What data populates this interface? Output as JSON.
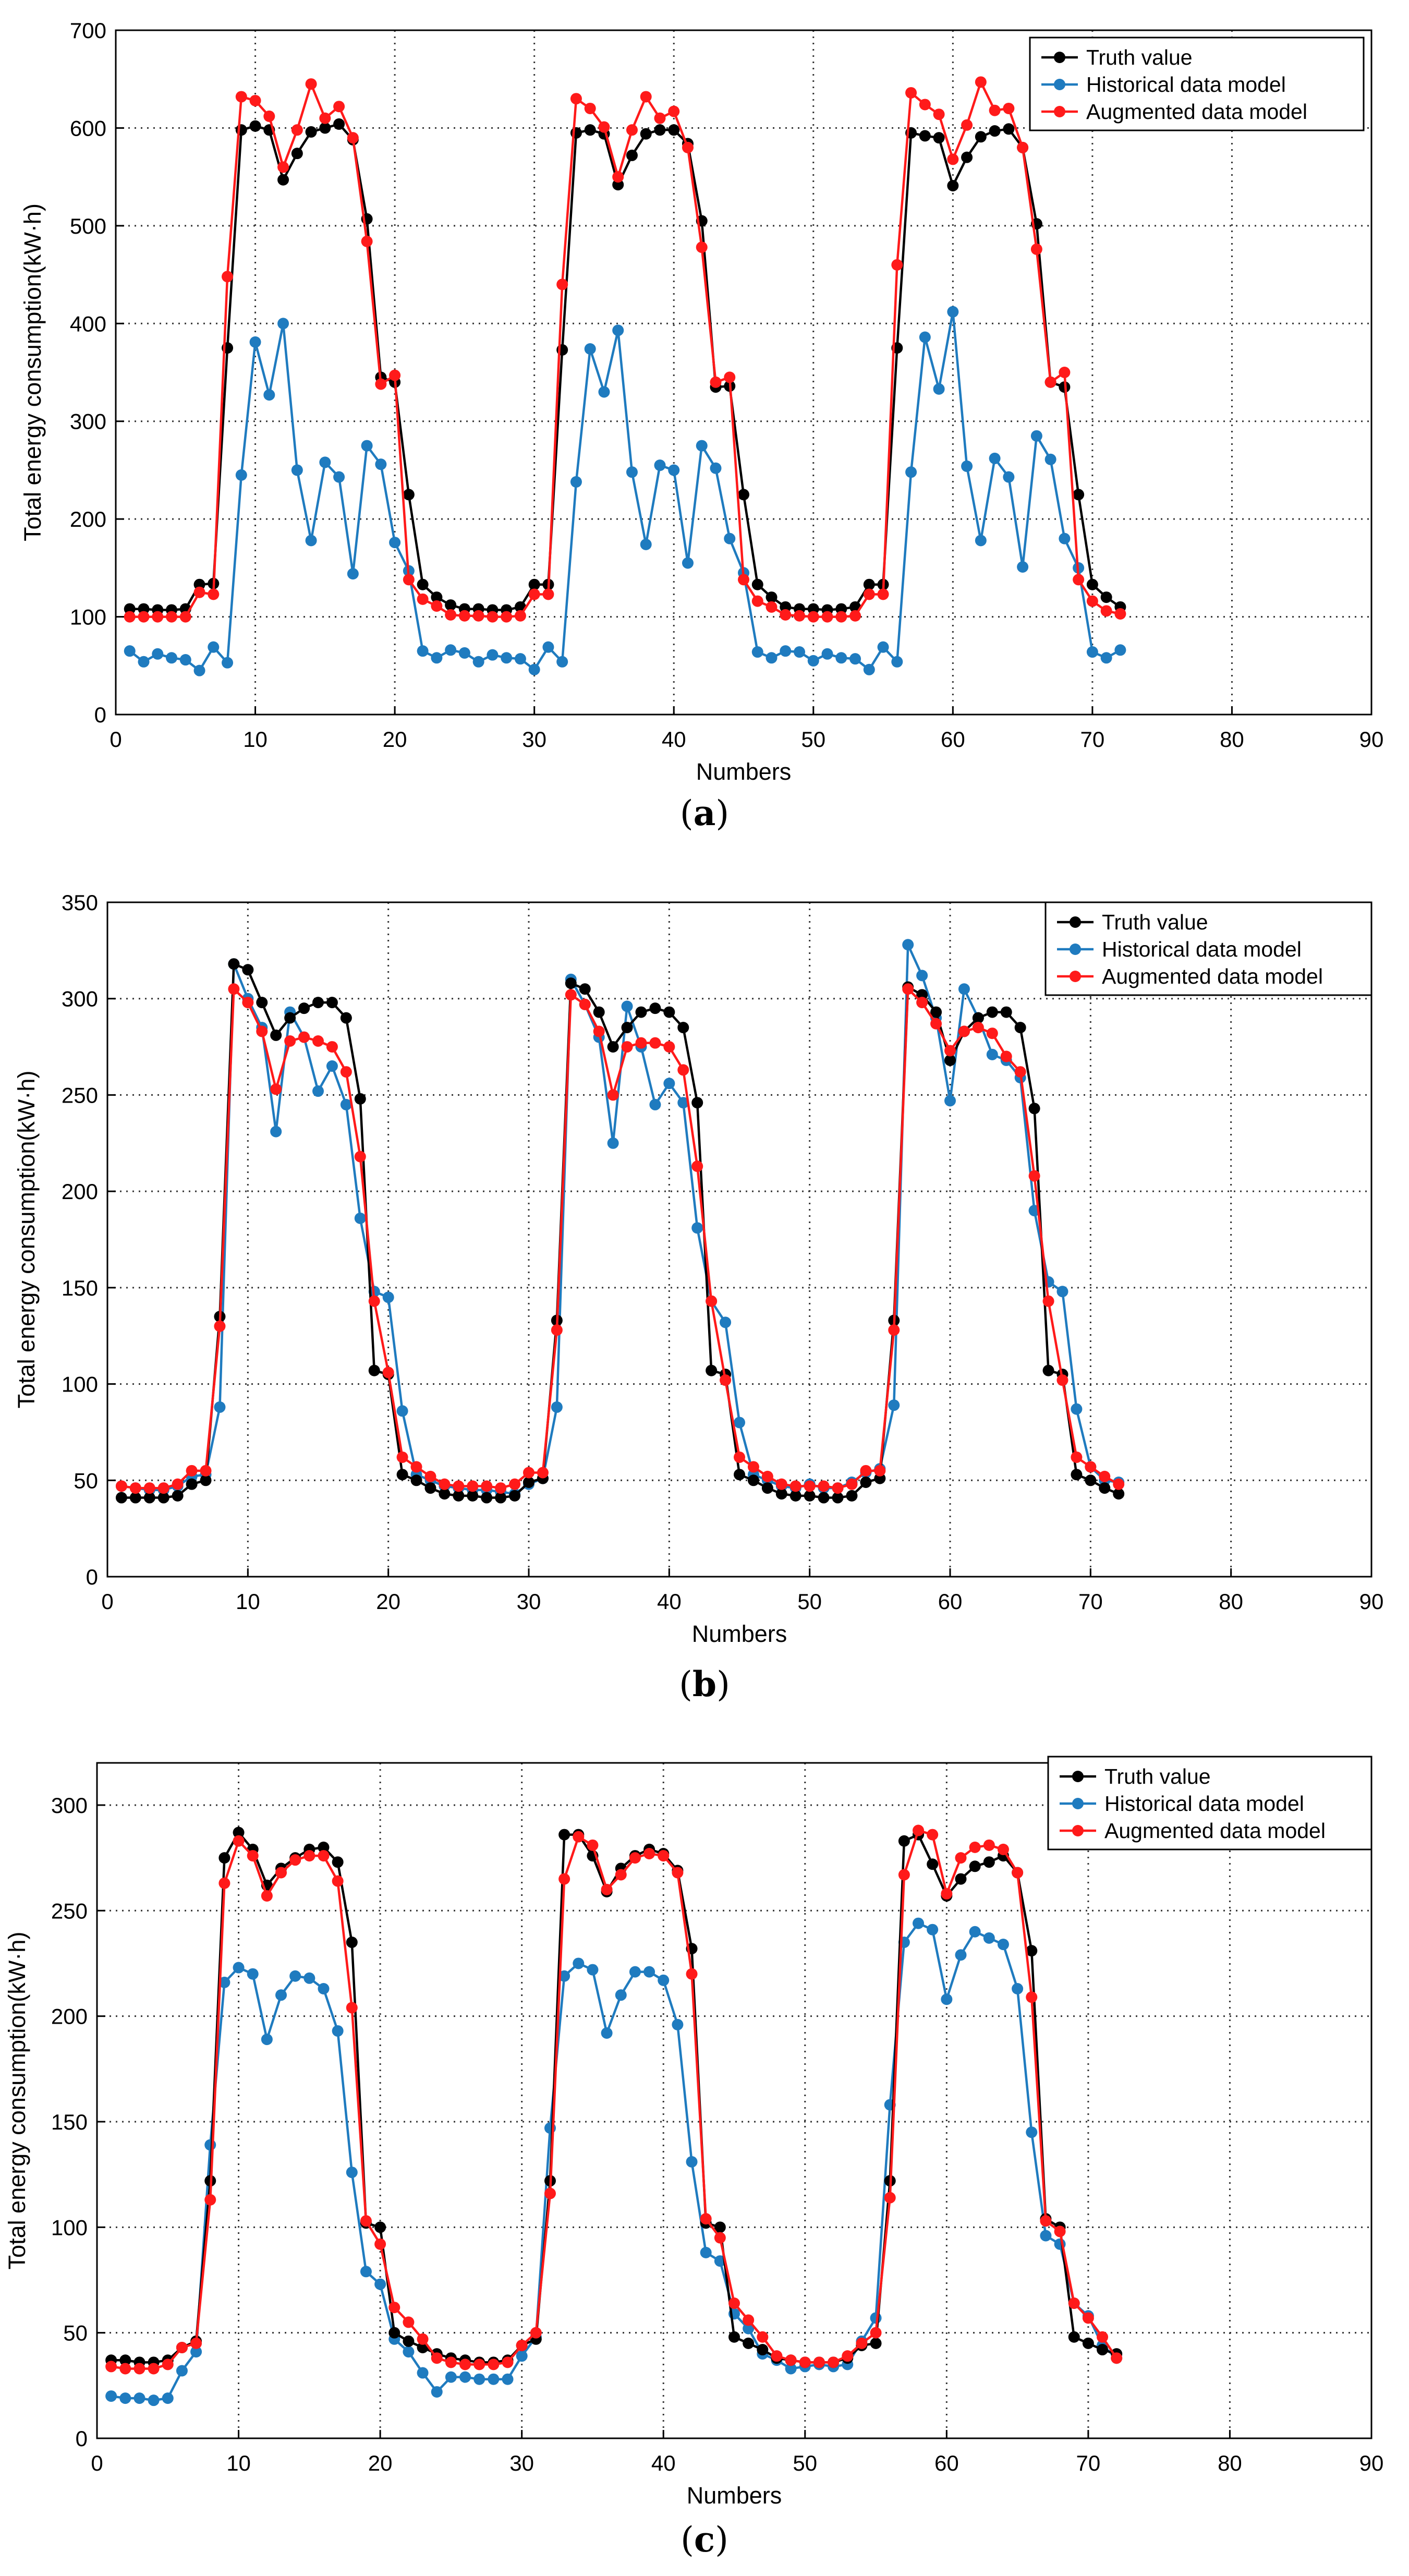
{
  "colors": {
    "truth": "#000000",
    "historical": "#1f7bbf",
    "augmented": "#ff1a1a"
  },
  "chart_data": [
    {
      "type": "line",
      "panel_label": "a",
      "xlabel": "Numbers",
      "ylabel": "Total energy consumption(kW·h)",
      "xlim": [
        0,
        90
      ],
      "ylim": [
        0,
        700
      ],
      "xticks": [
        0,
        10,
        20,
        30,
        40,
        50,
        60,
        70,
        80,
        90
      ],
      "yticks": [
        0,
        100,
        200,
        300,
        400,
        500,
        600,
        700
      ],
      "grid": true,
      "legend_position": "top-right",
      "x": [
        1,
        2,
        3,
        4,
        5,
        6,
        7,
        8,
        9,
        10,
        11,
        12,
        13,
        14,
        15,
        16,
        17,
        18,
        19,
        20,
        21,
        22,
        23,
        24,
        25,
        26,
        27,
        28,
        29,
        30,
        31,
        32,
        33,
        34,
        35,
        36,
        37,
        38,
        39,
        40,
        41,
        42,
        43,
        44,
        45,
        46,
        47,
        48,
        49,
        50,
        51,
        52,
        53,
        54,
        55,
        56,
        57,
        58,
        59,
        60,
        61,
        62,
        63,
        64,
        65,
        66,
        67,
        68,
        69,
        70,
        71,
        72
      ],
      "series": [
        {
          "name": "Truth value",
          "color": "#000000",
          "values": [
            108,
            108,
            107,
            107,
            108,
            133,
            134,
            375,
            598,
            602,
            598,
            547,
            574,
            596,
            600,
            604,
            588,
            507,
            345,
            340,
            225,
            133,
            120,
            112,
            108,
            108,
            107,
            107,
            110,
            133,
            133,
            373,
            595,
            598,
            594,
            542,
            572,
            594,
            598,
            598,
            584,
            505,
            335,
            336,
            225,
            133,
            120,
            110,
            108,
            108,
            107,
            108,
            110,
            133,
            133,
            375,
            595,
            592,
            590,
            541,
            570,
            591,
            597,
            599,
            580,
            502,
            340,
            335,
            225,
            133,
            120,
            110
          ]
        },
        {
          "name": "Historical data model",
          "color": "#1f7bbf",
          "values": [
            65,
            54,
            62,
            58,
            56,
            45,
            69,
            53,
            245,
            381,
            327,
            400,
            250,
            178,
            258,
            243,
            144,
            275,
            256,
            176,
            147,
            65,
            58,
            66,
            63,
            54,
            61,
            58,
            57,
            46,
            69,
            54,
            238,
            374,
            330,
            393,
            248,
            174,
            255,
            250,
            155,
            275,
            252,
            180,
            145,
            64,
            58,
            65,
            64,
            55,
            62,
            58,
            57,
            46,
            69,
            54,
            248,
            386,
            333,
            412,
            254,
            178,
            262,
            243,
            151,
            285,
            261,
            180,
            150,
            64,
            58,
            66
          ]
        },
        {
          "name": "Augmented data model",
          "color": "#ff1a1a",
          "values": [
            100,
            100,
            100,
            100,
            100,
            125,
            123,
            448,
            632,
            628,
            612,
            560,
            598,
            645,
            610,
            622,
            590,
            484,
            338,
            347,
            138,
            118,
            111,
            102,
            101,
            101,
            100,
            100,
            101,
            123,
            123,
            440,
            630,
            620,
            601,
            550,
            598,
            632,
            610,
            617,
            580,
            478,
            340,
            345,
            138,
            116,
            110,
            102,
            101,
            100,
            100,
            100,
            101,
            123,
            123,
            460,
            636,
            624,
            614,
            568,
            603,
            647,
            618,
            620,
            580,
            476,
            340,
            350,
            138,
            116,
            106,
            103
          ]
        }
      ]
    },
    {
      "type": "line",
      "panel_label": "b",
      "xlabel": "Numbers",
      "ylabel": "Total energy consumption(kW·h)",
      "xlim": [
        0,
        90
      ],
      "ylim": [
        0,
        350
      ],
      "xticks": [
        0,
        10,
        20,
        30,
        40,
        50,
        60,
        70,
        80,
        90
      ],
      "yticks": [
        0,
        50,
        100,
        150,
        200,
        250,
        300,
        350
      ],
      "grid": true,
      "legend_position": "top-right",
      "x": [
        1,
        2,
        3,
        4,
        5,
        6,
        7,
        8,
        9,
        10,
        11,
        12,
        13,
        14,
        15,
        16,
        17,
        18,
        19,
        20,
        21,
        22,
        23,
        24,
        25,
        26,
        27,
        28,
        29,
        30,
        31,
        32,
        33,
        34,
        35,
        36,
        37,
        38,
        39,
        40,
        41,
        42,
        43,
        44,
        45,
        46,
        47,
        48,
        49,
        50,
        51,
        52,
        53,
        54,
        55,
        56,
        57,
        58,
        59,
        60,
        61,
        62,
        63,
        64,
        65,
        66,
        67,
        68,
        69,
        70,
        71,
        72
      ],
      "series": [
        {
          "name": "Truth value",
          "color": "#000000",
          "values": [
            41,
            41,
            41,
            41,
            42,
            48,
            50,
            135,
            318,
            315,
            298,
            281,
            290,
            295,
            298,
            298,
            290,
            248,
            107,
            105,
            53,
            50,
            46,
            43,
            42,
            42,
            41,
            41,
            42,
            49,
            51,
            133,
            308,
            305,
            293,
            275,
            285,
            293,
            295,
            293,
            285,
            246,
            107,
            105,
            53,
            50,
            46,
            43,
            42,
            42,
            41,
            41,
            42,
            49,
            51,
            133,
            306,
            302,
            293,
            268,
            283,
            290,
            293,
            293,
            285,
            243,
            107,
            105,
            53,
            50,
            46,
            43
          ]
        },
        {
          "name": "Historical data model",
          "color": "#1f7bbf",
          "values": [
            47,
            46,
            45,
            45,
            47,
            52,
            53,
            88,
            318,
            300,
            285,
            231,
            293,
            280,
            252,
            265,
            245,
            186,
            148,
            145,
            86,
            53,
            50,
            47,
            46,
            45,
            45,
            44,
            43,
            48,
            51,
            88,
            310,
            297,
            280,
            225,
            296,
            275,
            245,
            256,
            246,
            181,
            143,
            132,
            80,
            53,
            50,
            47,
            46,
            48,
            46,
            46,
            49,
            54,
            56,
            89,
            328,
            312,
            290,
            247,
            305,
            290,
            271,
            268,
            259,
            190,
            153,
            148,
            87,
            57,
            50,
            49
          ]
        },
        {
          "name": "Augmented data model",
          "color": "#ff1a1a",
          "values": [
            47,
            46,
            46,
            46,
            48,
            55,
            55,
            130,
            305,
            298,
            283,
            253,
            278,
            280,
            278,
            275,
            262,
            218,
            143,
            106,
            62,
            57,
            52,
            48,
            47,
            47,
            47,
            46,
            48,
            54,
            54,
            128,
            302,
            297,
            283,
            250,
            275,
            277,
            277,
            275,
            263,
            213,
            143,
            102,
            62,
            57,
            52,
            48,
            47,
            47,
            47,
            46,
            48,
            55,
            55,
            128,
            305,
            298,
            287,
            273,
            283,
            285,
            282,
            270,
            262,
            208,
            143,
            102,
            62,
            57,
            52,
            48
          ]
        }
      ]
    },
    {
      "type": "line",
      "panel_label": "c",
      "xlabel": "Numbers",
      "ylabel": "Total energy consumption(kW·h)",
      "xlim": [
        0,
        90
      ],
      "ylim": [
        0,
        320
      ],
      "xticks": [
        0,
        10,
        20,
        30,
        40,
        50,
        60,
        70,
        80,
        90
      ],
      "yticks": [
        0,
        50,
        100,
        150,
        200,
        250,
        300
      ],
      "grid": true,
      "legend_position": "top-right",
      "x": [
        1,
        2,
        3,
        4,
        5,
        6,
        7,
        8,
        9,
        10,
        11,
        12,
        13,
        14,
        15,
        16,
        17,
        18,
        19,
        20,
        21,
        22,
        23,
        24,
        25,
        26,
        27,
        28,
        29,
        30,
        31,
        32,
        33,
        34,
        35,
        36,
        37,
        38,
        39,
        40,
        41,
        42,
        43,
        44,
        45,
        46,
        47,
        48,
        49,
        50,
        51,
        52,
        53,
        54,
        55,
        56,
        57,
        58,
        59,
        60,
        61,
        62,
        63,
        64,
        65,
        66,
        67,
        68,
        69,
        70,
        71,
        72
      ],
      "series": [
        {
          "name": "Truth value",
          "color": "#000000",
          "values": [
            37,
            37,
            36,
            36,
            37,
            43,
            46,
            122,
            275,
            287,
            279,
            262,
            270,
            275,
            279,
            280,
            273,
            235,
            102,
            100,
            50,
            46,
            43,
            40,
            38,
            37,
            36,
            36,
            37,
            44,
            47,
            122,
            286,
            286,
            276,
            259,
            270,
            276,
            279,
            277,
            269,
            232,
            102,
            100,
            48,
            45,
            42,
            38,
            37,
            36,
            36,
            36,
            38,
            44,
            45,
            122,
            283,
            286,
            272,
            257,
            265,
            271,
            273,
            276,
            268,
            231,
            104,
            100,
            48,
            45,
            42,
            40
          ]
        },
        {
          "name": "Historical data model",
          "color": "#1f7bbf",
          "values": [
            20,
            19,
            19,
            18,
            19,
            32,
            41,
            139,
            216,
            223,
            220,
            189,
            210,
            219,
            218,
            213,
            193,
            126,
            79,
            73,
            47,
            41,
            31,
            22,
            29,
            29,
            28,
            28,
            28,
            39,
            48,
            147,
            219,
            225,
            222,
            192,
            210,
            221,
            221,
            217,
            196,
            131,
            88,
            84,
            59,
            52,
            40,
            37,
            33,
            34,
            35,
            34,
            35,
            46,
            57,
            158,
            235,
            244,
            241,
            208,
            229,
            240,
            237,
            234,
            213,
            145,
            96,
            92,
            64,
            58,
            44,
            38
          ]
        },
        {
          "name": "Augmented data model",
          "color": "#ff1a1a",
          "values": [
            34,
            33,
            33,
            33,
            35,
            43,
            45,
            113,
            263,
            283,
            276,
            257,
            268,
            274,
            276,
            276,
            264,
            204,
            103,
            92,
            62,
            55,
            47,
            38,
            36,
            35,
            35,
            35,
            36,
            44,
            50,
            116,
            265,
            285,
            281,
            260,
            267,
            275,
            277,
            276,
            268,
            220,
            104,
            95,
            64,
            56,
            48,
            39,
            37,
            36,
            36,
            36,
            39,
            45,
            50,
            114,
            267,
            288,
            286,
            258,
            275,
            280,
            281,
            279,
            268,
            209,
            103,
            98,
            64,
            57,
            48,
            38
          ]
        }
      ]
    }
  ]
}
